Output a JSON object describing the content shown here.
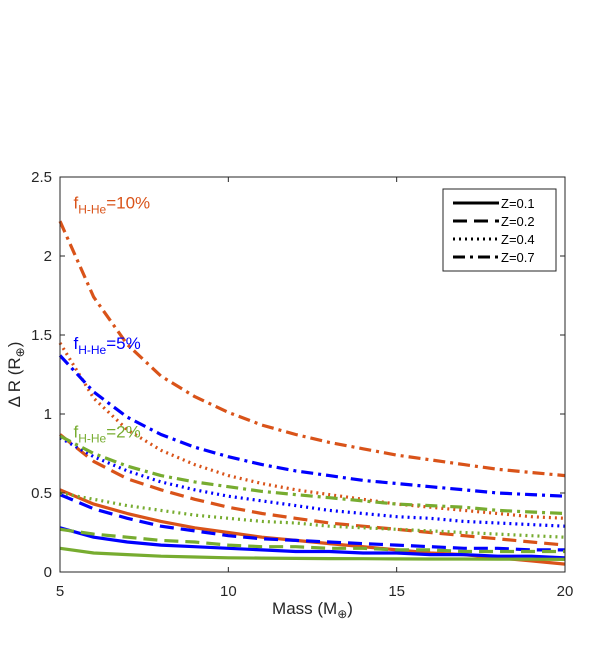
{
  "chart_data": {
    "type": "line",
    "title": "",
    "xlabel": "Mass (M",
    "xlabel_sub": "⊕",
    "xlabel_end": ")",
    "ylabel": "Δ R (R",
    "ylabel_sub": "⊕",
    "ylabel_end": ")",
    "xlim": [
      5,
      20
    ],
    "ylim": [
      0,
      2.5
    ],
    "xticks": [
      5,
      10,
      15,
      20
    ],
    "yticks": [
      0,
      0.5,
      1,
      1.5,
      2,
      2.5
    ],
    "xtick_labels": [
      "5",
      "10",
      "15",
      "20"
    ],
    "ytick_labels": [
      "0",
      "0.5",
      "1",
      "1.5",
      "2",
      "2.5"
    ],
    "grid": false,
    "legend_placement": "top-right",
    "legend": [
      {
        "label": "Z=0.1",
        "style": "solid"
      },
      {
        "label": "Z=0.2",
        "style": "dashed"
      },
      {
        "label": "Z=0.4",
        "style": "dotted"
      },
      {
        "label": "Z=0.7",
        "style": "dashdot"
      }
    ],
    "annotations": [
      {
        "prefix": "f",
        "sub": "H-He",
        "suffix": "=10%",
        "color": "#D95319",
        "x": 5.4,
        "y": 2.3
      },
      {
        "prefix": "f",
        "sub": "H-He",
        "suffix": "=5%",
        "color": "#0000FF",
        "x": 5.4,
        "y": 1.41
      },
      {
        "prefix": "f",
        "sub": "H-He",
        "suffix": "=2%",
        "color": "#77AC30",
        "x": 5.4,
        "y": 0.85
      }
    ],
    "x": [
      5,
      6,
      7,
      8,
      9,
      10,
      11,
      12,
      13,
      14,
      15,
      16,
      17,
      18,
      19,
      20
    ],
    "series": [
      {
        "group": "10%",
        "Z": 0.7,
        "style": "dashdot",
        "color": "#D95319",
        "values": [
          2.22,
          1.74,
          1.44,
          1.24,
          1.11,
          1.01,
          0.93,
          0.87,
          0.82,
          0.78,
          0.74,
          0.71,
          0.68,
          0.65,
          0.63,
          0.61
        ]
      },
      {
        "group": "10%",
        "Z": 0.4,
        "style": "dotted",
        "color": "#D95319",
        "values": [
          1.45,
          1.1,
          0.9,
          0.77,
          0.68,
          0.61,
          0.56,
          0.52,
          0.49,
          0.46,
          0.43,
          0.41,
          0.39,
          0.37,
          0.35,
          0.34
        ]
      },
      {
        "group": "10%",
        "Z": 0.2,
        "style": "dashed",
        "color": "#D95319",
        "values": [
          0.87,
          0.7,
          0.59,
          0.52,
          0.46,
          0.41,
          0.37,
          0.34,
          0.31,
          0.29,
          0.27,
          0.25,
          0.23,
          0.21,
          0.19,
          0.17
        ]
      },
      {
        "group": "10%",
        "Z": 0.1,
        "style": "solid",
        "color": "#D95319",
        "values": [
          0.52,
          0.43,
          0.37,
          0.32,
          0.28,
          0.25,
          0.22,
          0.2,
          0.18,
          0.16,
          0.14,
          0.12,
          0.11,
          0.09,
          0.07,
          0.05
        ]
      },
      {
        "group": "5%",
        "Z": 0.7,
        "style": "dashdot",
        "color": "#0000FF",
        "values": [
          1.37,
          1.14,
          0.98,
          0.87,
          0.79,
          0.73,
          0.68,
          0.64,
          0.61,
          0.58,
          0.56,
          0.54,
          0.52,
          0.5,
          0.49,
          0.48
        ]
      },
      {
        "group": "5%",
        "Z": 0.4,
        "style": "dotted",
        "color": "#0000FF",
        "values": [
          0.85,
          0.73,
          0.64,
          0.57,
          0.52,
          0.48,
          0.45,
          0.42,
          0.39,
          0.37,
          0.35,
          0.34,
          0.32,
          0.31,
          0.3,
          0.29
        ]
      },
      {
        "group": "5%",
        "Z": 0.2,
        "style": "dashed",
        "color": "#0000FF",
        "values": [
          0.49,
          0.4,
          0.34,
          0.29,
          0.26,
          0.23,
          0.21,
          0.2,
          0.19,
          0.18,
          0.17,
          0.16,
          0.15,
          0.15,
          0.14,
          0.14
        ]
      },
      {
        "group": "5%",
        "Z": 0.1,
        "style": "solid",
        "color": "#0000FF",
        "values": [
          0.28,
          0.22,
          0.19,
          0.17,
          0.16,
          0.15,
          0.14,
          0.13,
          0.13,
          0.12,
          0.12,
          0.11,
          0.11,
          0.1,
          0.1,
          0.09
        ]
      },
      {
        "group": "2%",
        "Z": 0.7,
        "style": "dashdot",
        "color": "#77AC30",
        "values": [
          0.86,
          0.75,
          0.67,
          0.61,
          0.57,
          0.54,
          0.51,
          0.49,
          0.47,
          0.45,
          0.43,
          0.42,
          0.41,
          0.39,
          0.38,
          0.37
        ]
      },
      {
        "group": "2%",
        "Z": 0.4,
        "style": "dotted",
        "color": "#77AC30",
        "values": [
          0.5,
          0.46,
          0.42,
          0.39,
          0.36,
          0.34,
          0.32,
          0.31,
          0.29,
          0.28,
          0.27,
          0.26,
          0.25,
          0.24,
          0.23,
          0.22
        ]
      },
      {
        "group": "2%",
        "Z": 0.2,
        "style": "dashed",
        "color": "#77AC30",
        "values": [
          0.27,
          0.24,
          0.22,
          0.2,
          0.19,
          0.17,
          0.16,
          0.16,
          0.15,
          0.15,
          0.14,
          0.14,
          0.13,
          0.13,
          0.13,
          0.13
        ]
      },
      {
        "group": "2%",
        "Z": 0.1,
        "style": "solid",
        "color": "#77AC30",
        "values": [
          0.15,
          0.12,
          0.11,
          0.1,
          0.095,
          0.09,
          0.088,
          0.086,
          0.085,
          0.084,
          0.083,
          0.082,
          0.082,
          0.081,
          0.081,
          0.08
        ]
      }
    ]
  }
}
